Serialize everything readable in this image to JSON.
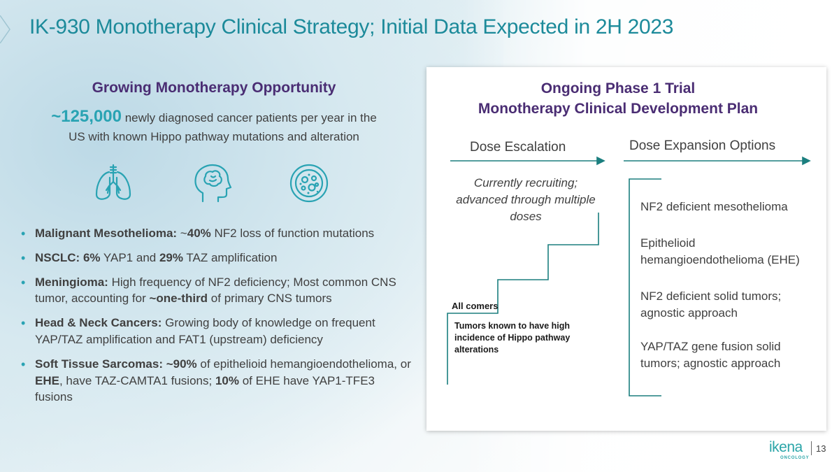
{
  "slide": {
    "title": "IK-930 Monotherapy Clinical Strategy; Initial Data Expected in 2H 2023",
    "page_number": "13"
  },
  "left": {
    "heading": "Growing Monotherapy Opportunity",
    "stat_number": "~125,000",
    "stat_text_1": " newly diagnosed cancer patients per year in the",
    "stat_text_2": "US with known Hippo pathway mutations and alteration",
    "icons": [
      "lungs-icon",
      "head-brain-icon",
      "cell-icon"
    ],
    "bullets": [
      {
        "bold_1": "Malignant Mesothelioma:",
        "text_1": "  ~",
        "bold_2": "40%",
        "text_2": " NF2 loss of function mutations"
      },
      {
        "bold_1": "NSCLC: 6%",
        "text_1": " YAP1 and ",
        "bold_2": "29%",
        "text_2": " TAZ amplification"
      },
      {
        "bold_1": "Meningioma:",
        "text_1": " High frequency of NF2 deficiency; Most common CNS tumor, accounting for ",
        "bold_2": "~one-third",
        "text_2": " of primary CNS tumors"
      },
      {
        "bold_1": "Head & Neck Cancers:",
        "text_1": " Growing body of knowledge on frequent YAP/TAZ amplification and FAT1 (upstream) deficiency"
      },
      {
        "bold_1": "Soft Tissue Sarcomas: ~90%",
        "text_1": " of epithelioid hemangioendothelioma, or ",
        "bold_2": "EHE",
        "text_2": ", have TAZ-CAMTA1 fusions; ",
        "bold_3": "10%",
        "text_3": " of EHE have YAP1-TFE3 fusions"
      }
    ]
  },
  "right": {
    "heading_line1": "Ongoing Phase 1 Trial",
    "heading_line2": "Monotherapy Clinical Development Plan",
    "dose_escalation_label": "Dose Escalation",
    "dose_expansion_label": "Dose Expansion Options",
    "recruiting_text": "Currently recruiting; advanced through multiple doses",
    "all_comers": "All comers",
    "tumors_known": "Tumors known to have high incidence of Hippo pathway alterations",
    "expansion_options": [
      "NF2 deficient mesothelioma",
      "Epithelioid hemangioendothelioma (EHE)",
      "NF2 deficient solid tumors; agnostic approach",
      "YAP/TAZ gene fusion solid tumors; agnostic approach"
    ]
  },
  "logo": {
    "name": "ikena",
    "sub": "ONCOLOGY"
  },
  "colors": {
    "title": "#1c8a9a",
    "heading": "#4a2d73",
    "accent": "#29a3b3",
    "stair": "#1b7f7f"
  }
}
